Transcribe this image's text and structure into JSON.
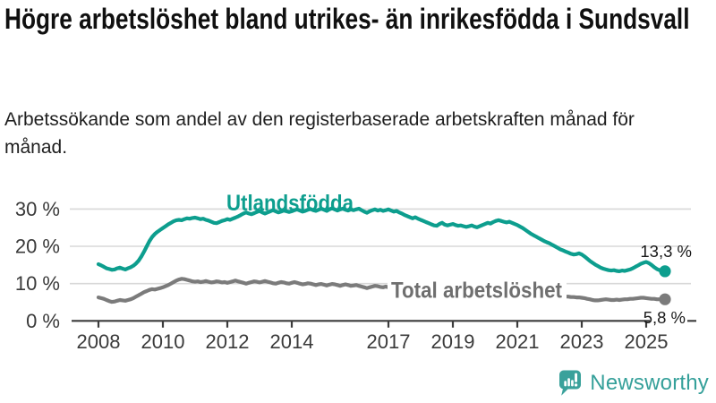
{
  "header": {
    "title": "Högre arbetslöshet bland utrikes- än inrikesfödda i Sundsvall",
    "subtitle": "Arbetssökande som andel av den registerbaserade arbetskraften månad för månad."
  },
  "chart_data": {
    "type": "line",
    "title": "",
    "xlabel": "",
    "ylabel": "",
    "x_start": "2008-01",
    "x_end": "2025-08",
    "x_step": "1 month",
    "grid": "horizontal",
    "legend_position": "inline-labels",
    "x_axis": {
      "tick_years": [
        2008,
        2010,
        2012,
        2014,
        2017,
        2019,
        2021,
        2023,
        2025
      ]
    },
    "y_axis": {
      "range": [
        0,
        32
      ],
      "ticks": [
        {
          "value": 0,
          "label": "0 %"
        },
        {
          "value": 10,
          "label": "10 %"
        },
        {
          "value": 20,
          "label": "20 %"
        },
        {
          "value": 30,
          "label": "30 %"
        }
      ]
    },
    "style": {
      "grid_color": "#d8d8d8",
      "axis_color": "#3c3c3c",
      "tick_text_color": "#3a3a3a",
      "value_text_color": "#1a1a1a"
    },
    "series": [
      {
        "name": "Utlandsfödda",
        "color": "#0d9e8e",
        "end_label": "13,3 %",
        "end_value": 13.3,
        "values": [
          15.2,
          14.9,
          14.5,
          14.1,
          13.9,
          13.7,
          13.8,
          14.1,
          14.3,
          14.0,
          13.8,
          14.1,
          14.4,
          14.8,
          15.4,
          16.2,
          17.3,
          18.6,
          20.0,
          21.4,
          22.5,
          23.3,
          23.9,
          24.4,
          24.9,
          25.4,
          25.9,
          26.3,
          26.7,
          27.0,
          27.1,
          27.0,
          27.3,
          27.5,
          27.4,
          27.6,
          27.7,
          27.5,
          27.3,
          27.4,
          27.1,
          26.9,
          26.6,
          26.3,
          26.2,
          26.5,
          26.8,
          27.0,
          27.3,
          27.1,
          27.4,
          27.7,
          28.0,
          28.4,
          28.8,
          29.1,
          28.8,
          28.6,
          28.9,
          29.2,
          29.5,
          29.1,
          28.8,
          29.1,
          29.4,
          29.7,
          29.4,
          29.1,
          29.3,
          29.6,
          29.4,
          29.2,
          29.4,
          29.7,
          29.9,
          29.6,
          29.3,
          29.5,
          29.8,
          30.0,
          29.7,
          29.5,
          29.8,
          30.1,
          29.8,
          29.5,
          29.9,
          30.2,
          29.9,
          29.6,
          29.9,
          30.1,
          29.8,
          29.6,
          29.9,
          29.7,
          29.9,
          30.1,
          29.7,
          29.3,
          29.0,
          29.4,
          29.7,
          29.9,
          29.6,
          29.8,
          29.5,
          29.7,
          29.9,
          29.6,
          29.3,
          29.5,
          29.1,
          28.8,
          28.4,
          28.1,
          27.8,
          27.5,
          27.8,
          27.4,
          27.1,
          26.8,
          26.5,
          26.2,
          25.9,
          25.6,
          25.5,
          26.0,
          26.3,
          25.8,
          25.6,
          25.8,
          26.0,
          25.7,
          25.5,
          25.6,
          25.4,
          25.2,
          25.4,
          25.6,
          25.3,
          25.1,
          25.4,
          25.7,
          26.0,
          26.3,
          26.1,
          26.5,
          26.8,
          27.0,
          26.8,
          26.6,
          26.4,
          26.6,
          26.3,
          26.0,
          25.7,
          25.3,
          24.9,
          24.4,
          23.9,
          23.4,
          23.0,
          22.6,
          22.2,
          21.8,
          21.4,
          21.1,
          20.8,
          20.4,
          20.0,
          19.6,
          19.2,
          18.9,
          18.6,
          18.3,
          18.0,
          17.8,
          17.9,
          18.1,
          17.8,
          17.3,
          16.7,
          16.1,
          15.6,
          15.1,
          14.7,
          14.3,
          14.0,
          13.8,
          13.6,
          13.5,
          13.6,
          13.4,
          13.3,
          13.5,
          13.4,
          13.6,
          13.8,
          14.1,
          14.5,
          14.9,
          15.3,
          15.6,
          15.8,
          15.5,
          15.0,
          14.4,
          13.9,
          13.6,
          13.4,
          13.3
        ]
      },
      {
        "name": "Total arbetslöshet",
        "color": "#7b7b7b",
        "label_color": "#6f6f6f",
        "end_label": "5,8 %",
        "end_value": 5.8,
        "values": [
          6.3,
          6.1,
          5.9,
          5.6,
          5.3,
          5.1,
          5.2,
          5.4,
          5.6,
          5.5,
          5.4,
          5.6,
          5.8,
          6.1,
          6.5,
          6.9,
          7.3,
          7.7,
          8.0,
          8.3,
          8.5,
          8.4,
          8.6,
          8.8,
          9.0,
          9.3,
          9.6,
          10.0,
          10.4,
          10.8,
          11.1,
          11.3,
          11.2,
          11.0,
          10.8,
          10.6,
          10.5,
          10.6,
          10.4,
          10.5,
          10.7,
          10.5,
          10.3,
          10.4,
          10.6,
          10.5,
          10.3,
          10.4,
          10.2,
          10.4,
          10.6,
          10.8,
          10.6,
          10.4,
          10.2,
          10.0,
          10.2,
          10.4,
          10.6,
          10.5,
          10.3,
          10.5,
          10.7,
          10.5,
          10.3,
          10.1,
          10.0,
          10.2,
          10.4,
          10.3,
          10.1,
          10.0,
          10.2,
          10.4,
          10.2,
          10.0,
          9.8,
          9.9,
          10.1,
          10.0,
          9.8,
          9.6,
          9.8,
          9.9,
          9.7,
          9.5,
          9.7,
          9.9,
          9.8,
          9.6,
          9.4,
          9.6,
          9.8,
          9.6,
          9.4,
          9.5,
          9.6,
          9.4,
          9.2,
          9.0,
          8.8,
          9.0,
          9.2,
          9.4,
          9.3,
          9.1,
          9.0,
          9.2,
          9.0,
          8.8,
          8.6,
          8.5,
          8.4,
          8.3,
          8.2,
          8.3,
          8.4,
          8.3,
          8.2,
          8.1,
          8.0,
          7.9,
          7.8,
          7.9,
          8.0,
          7.9,
          7.8,
          7.7,
          7.8,
          7.9,
          7.8,
          7.7,
          7.8,
          7.9,
          7.8,
          7.7,
          7.8,
          7.9,
          8.0,
          7.9,
          7.8,
          7.9,
          8.0,
          8.1,
          8.3,
          8.6,
          8.9,
          9.2,
          9.4,
          9.5,
          9.4,
          9.3,
          9.2,
          9.0,
          8.9,
          8.7,
          8.5,
          8.3,
          8.1,
          7.9,
          7.7,
          7.5,
          7.4,
          7.3,
          7.2,
          7.1,
          7.0,
          6.9,
          6.8,
          6.8,
          6.7,
          6.7,
          6.6,
          6.6,
          6.5,
          6.5,
          6.4,
          6.4,
          6.3,
          6.3,
          6.2,
          6.1,
          5.9,
          5.8,
          5.6,
          5.5,
          5.5,
          5.6,
          5.7,
          5.8,
          5.7,
          5.6,
          5.6,
          5.7,
          5.6,
          5.7,
          5.8,
          5.8,
          5.9,
          5.9,
          6.0,
          6.1,
          6.2,
          6.2,
          6.1,
          6.0,
          5.9,
          5.9,
          5.8,
          5.8,
          5.8,
          5.8
        ]
      }
    ]
  },
  "footer": {
    "brand": "Newsworthy",
    "brand_color": "#35a09a",
    "logo_icon": "bar-chart-speech-bubble-icon"
  }
}
